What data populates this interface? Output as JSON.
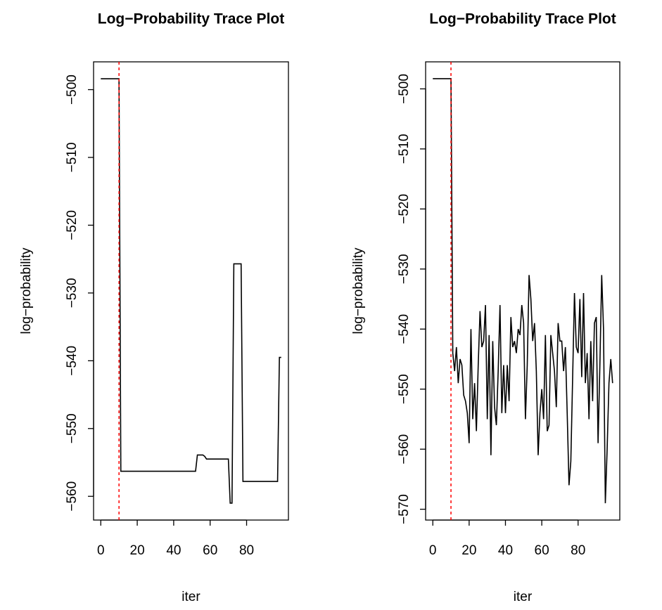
{
  "chart_data": [
    {
      "type": "line",
      "title": "Log−Probability Trace Plot",
      "xlabel": "iter",
      "ylabel": "log−probability",
      "x": [
        0,
        1,
        2,
        3,
        4,
        5,
        6,
        7,
        8,
        9,
        10,
        11,
        12,
        13,
        14,
        15,
        16,
        17,
        18,
        19,
        20,
        21,
        22,
        23,
        24,
        25,
        26,
        27,
        28,
        29,
        30,
        31,
        32,
        33,
        34,
        35,
        36,
        37,
        38,
        39,
        40,
        41,
        42,
        43,
        44,
        45,
        46,
        47,
        48,
        49,
        50,
        51,
        52,
        53,
        54,
        55,
        56,
        57,
        58,
        59,
        60,
        61,
        62,
        63,
        64,
        65,
        66,
        67,
        68,
        69,
        70,
        71,
        72,
        73,
        74,
        75,
        76,
        77,
        78,
        79,
        80,
        81,
        82,
        83,
        84,
        85,
        86,
        87,
        88,
        89,
        90,
        91,
        92,
        93,
        94,
        95,
        96,
        97,
        98,
        99
      ],
      "series": [
        {
          "color": "#000000",
          "values": [
            -498.4,
            -498.4,
            -498.4,
            -498.4,
            -498.4,
            -498.4,
            -498.4,
            -498.4,
            -498.4,
            -498.4,
            -498.4,
            -556.3,
            -556.3,
            -556.3,
            -556.3,
            -556.3,
            -556.3,
            -556.3,
            -556.3,
            -556.3,
            -556.3,
            -556.3,
            -556.3,
            -556.3,
            -556.3,
            -556.3,
            -556.3,
            -556.3,
            -556.3,
            -556.3,
            -556.3,
            -556.3,
            -556.3,
            -556.3,
            -556.3,
            -556.3,
            -556.3,
            -556.3,
            -556.3,
            -556.3,
            -556.3,
            -556.3,
            -556.3,
            -556.3,
            -556.3,
            -556.3,
            -556.3,
            -556.3,
            -556.3,
            -556.3,
            -556.3,
            -556.3,
            -556.3,
            -553.9,
            -553.9,
            -553.9,
            -553.9,
            -554.1,
            -554.5,
            -554.5,
            -554.5,
            -554.5,
            -554.5,
            -554.5,
            -554.5,
            -554.5,
            -554.5,
            -554.5,
            -554.5,
            -554.5,
            -554.5,
            -561.0,
            -561.0,
            -525.7,
            -525.7,
            -525.7,
            -525.7,
            -525.7,
            -557.8,
            -557.8,
            -557.8,
            -557.8,
            -557.8,
            -557.8,
            -557.8,
            -557.8,
            -557.8,
            -557.8,
            -557.8,
            -557.8,
            -557.8,
            -557.8,
            -557.8,
            -557.8,
            -557.8,
            -557.8,
            -557.8,
            -557.8,
            -539.5,
            -539.5
          ]
        }
      ],
      "xlim": [
        -3.96,
        102.96
      ],
      "ylim": [
        -563.5,
        -495.9
      ],
      "xticks": [
        0,
        20,
        40,
        60,
        80
      ],
      "yticks": [
        {
          "value": -500,
          "label": "−500"
        },
        {
          "value": -510,
          "label": "−510"
        },
        {
          "value": -520,
          "label": "−520"
        },
        {
          "value": -530,
          "label": "−530"
        },
        {
          "value": -540,
          "label": "−540"
        },
        {
          "value": -550,
          "label": "−550"
        },
        {
          "value": -560,
          "label": "−560"
        }
      ],
      "vline": 10,
      "vline_color": "#ff0000"
    },
    {
      "type": "line",
      "title": "Log−Probability Trace Plot",
      "xlabel": "iter",
      "ylabel": "log−probability",
      "x": [
        0,
        1,
        2,
        3,
        4,
        5,
        6,
        7,
        8,
        9,
        10,
        11,
        12,
        13,
        14,
        15,
        16,
        17,
        18,
        19,
        20,
        21,
        22,
        23,
        24,
        25,
        26,
        27,
        28,
        29,
        30,
        31,
        32,
        33,
        34,
        35,
        36,
        37,
        38,
        39,
        40,
        41,
        42,
        43,
        44,
        45,
        46,
        47,
        48,
        49,
        50,
        51,
        52,
        53,
        54,
        55,
        56,
        57,
        58,
        59,
        60,
        61,
        62,
        63,
        64,
        65,
        66,
        67,
        68,
        69,
        70,
        71,
        72,
        73,
        74,
        75,
        76,
        77,
        78,
        79,
        80,
        81,
        82,
        83,
        84,
        85,
        86,
        87,
        88,
        89,
        90,
        91,
        92,
        93,
        94,
        95,
        96,
        97,
        98,
        99
      ],
      "series": [
        {
          "color": "#000000",
          "values": [
            -498.3,
            -498.3,
            -498.3,
            -498.3,
            -498.3,
            -498.3,
            -498.3,
            -498.3,
            -498.3,
            -498.3,
            -498.3,
            -544,
            -547,
            -543,
            -549,
            -545,
            -546,
            -551,
            -552,
            -554,
            -559,
            -540,
            -555,
            -549,
            -557,
            -546,
            -537,
            -543,
            -542,
            -536,
            -555,
            -541,
            -561,
            -542,
            -553,
            -556,
            -547,
            -536,
            -554,
            -546,
            -554,
            -546,
            -552,
            -538,
            -543,
            -542,
            -544,
            -540,
            -541,
            -536,
            -539,
            -555,
            -546,
            -531,
            -535,
            -542,
            -539,
            -547,
            -561,
            -554,
            -550,
            -555,
            -541,
            -557,
            -556,
            -541,
            -544,
            -547,
            -553,
            -539,
            -542,
            -542,
            -547,
            -543,
            -554,
            -566,
            -562,
            -548,
            -534,
            -543,
            -544,
            -535,
            -548,
            -534,
            -549,
            -544,
            -555,
            -542,
            -552,
            -539,
            -538,
            -559,
            -546,
            -531,
            -540,
            -569,
            -560,
            -549,
            -545,
            -549
          ]
        }
      ],
      "xlim": [
        -3.96,
        102.96
      ],
      "ylim": [
        -571.8,
        -495.5
      ],
      "xticks": [
        0,
        20,
        40,
        60,
        80
      ],
      "yticks": [
        {
          "value": -500,
          "label": "−500"
        },
        {
          "value": -510,
          "label": "−510"
        },
        {
          "value": -520,
          "label": "−520"
        },
        {
          "value": -530,
          "label": "−530"
        },
        {
          "value": -540,
          "label": "−540"
        },
        {
          "value": -550,
          "label": "−550"
        },
        {
          "value": -560,
          "label": "−560"
        },
        {
          "value": -570,
          "label": "−570"
        }
      ],
      "vline": 10,
      "vline_color": "#ff0000"
    }
  ]
}
